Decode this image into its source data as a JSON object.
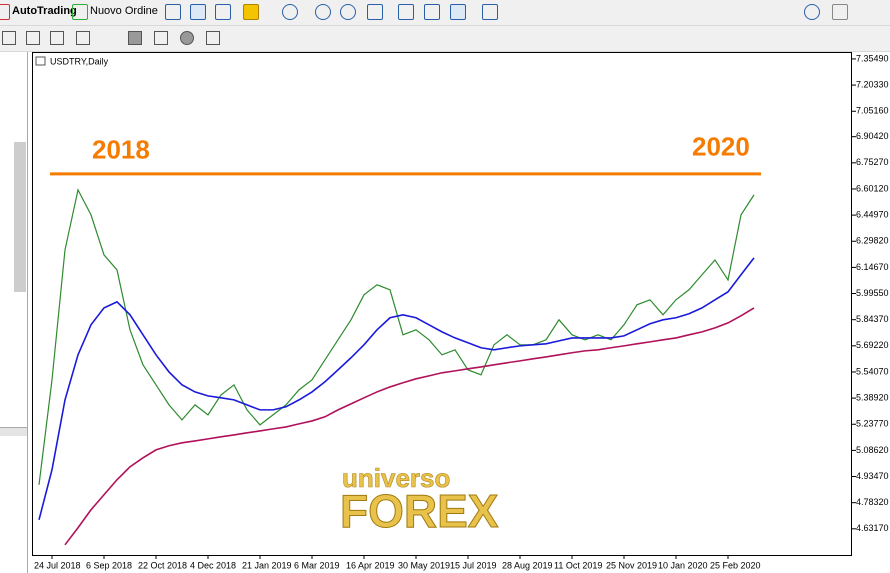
{
  "toolbar": {
    "buttons": [
      "AutoTrading",
      "Nuovo Ordine"
    ]
  },
  "watermark": [
    "universo",
    "FOREX"
  ],
  "chart_data": {
    "type": "line",
    "title": "USDTRY,Daily",
    "annotations": [
      {
        "text": "2018"
      },
      {
        "text": "2020"
      }
    ],
    "level": 6.689,
    "level_color": "#f57c00",
    "categories": [
      null,
      "24 Jul 2018",
      null,
      null,
      null,
      "6 Sep 2018",
      null,
      null,
      null,
      "22 Oct 2018",
      null,
      null,
      null,
      "4 Dec 2018",
      null,
      null,
      null,
      "21 Jan 2019",
      null,
      null,
      null,
      "6 Mar 2019",
      null,
      null,
      null,
      "16 Apr 2019",
      null,
      null,
      null,
      "30 May 2019",
      null,
      null,
      null,
      "15 Jul 2019",
      null,
      null,
      null,
      "28 Aug 2019",
      null,
      null,
      null,
      "11 Oct 2019",
      null,
      null,
      null,
      "25 Nov 2019",
      null,
      null,
      null,
      "10 Jan 2020",
      null,
      null,
      null,
      "25 Feb 2020",
      null,
      null
    ],
    "series": [
      {
        "color": "#2e8b2e",
        "values": [
          4.887,
          5.495,
          6.248,
          6.596,
          6.451,
          6.219,
          6.132,
          5.785,
          5.582,
          5.466,
          5.35,
          5.263,
          5.35,
          5.292,
          5.408,
          5.466,
          5.321,
          5.234,
          5.292,
          5.35,
          5.437,
          5.495,
          5.611,
          5.727,
          5.843,
          5.988,
          6.046,
          6.017,
          5.756,
          5.785,
          5.727,
          5.64,
          5.669,
          5.553,
          5.524,
          5.698,
          5.756,
          5.698,
          5.698,
          5.727,
          5.843,
          5.756,
          5.727,
          5.756,
          5.727,
          5.814,
          5.93,
          5.959,
          5.872,
          5.959,
          6.017,
          6.104,
          6.19,
          6.074,
          6.451,
          6.567
        ]
      },
      {
        "color": "#1a1adb",
        "values": [
          4.684,
          4.974,
          5.379,
          5.64,
          5.814,
          5.912,
          5.947,
          5.872,
          5.756,
          5.64,
          5.541,
          5.466,
          5.425,
          5.402,
          5.391,
          5.379,
          5.35,
          5.321,
          5.321,
          5.339,
          5.379,
          5.425,
          5.484,
          5.553,
          5.623,
          5.698,
          5.785,
          5.855,
          5.872,
          5.855,
          5.814,
          5.773,
          5.738,
          5.71,
          5.681,
          5.669,
          5.681,
          5.692,
          5.698,
          5.704,
          5.721,
          5.738,
          5.738,
          5.738,
          5.738,
          5.75,
          5.785,
          5.82,
          5.843,
          5.855,
          5.878,
          5.912,
          5.959,
          6.005,
          6.104,
          6.202
        ]
      },
      {
        "color": "#b0115a",
        "values": [
          null,
          null,
          4.539,
          4.638,
          4.742,
          4.829,
          4.916,
          4.991,
          5.043,
          5.089,
          5.113,
          5.13,
          5.141,
          5.153,
          5.165,
          5.176,
          5.188,
          5.199,
          5.211,
          5.222,
          5.24,
          5.257,
          5.281,
          5.321,
          5.356,
          5.391,
          5.425,
          5.454,
          5.478,
          5.501,
          5.518,
          5.536,
          5.547,
          5.559,
          5.57,
          5.582,
          5.594,
          5.605,
          5.617,
          5.628,
          5.64,
          5.652,
          5.663,
          5.669,
          5.681,
          5.692,
          5.704,
          5.715,
          5.727,
          5.738,
          5.756,
          5.773,
          5.796,
          5.825,
          5.866,
          5.912
        ]
      }
    ],
    "ylim": [
      4.48,
      7.395
    ],
    "yticks": [
      {
        "value": 7.3549,
        "label": "7.35490"
      },
      {
        "value": 7.2033,
        "label": "7.20330"
      },
      {
        "value": 7.0516,
        "label": "7.05160"
      },
      {
        "value": 6.9042,
        "label": "6.90420"
      },
      {
        "value": 6.7527,
        "label": "6.75270"
      },
      {
        "value": 6.6012,
        "label": "6.60120"
      },
      {
        "value": 6.4497,
        "label": "6.44970"
      },
      {
        "value": 6.2982,
        "label": "6.29820"
      },
      {
        "value": 6.1467,
        "label": "6.14670"
      },
      {
        "value": 5.9955,
        "label": "5.99550"
      },
      {
        "value": 5.8437,
        "label": "5.84370"
      },
      {
        "value": 5.6922,
        "label": "5.69220"
      },
      {
        "value": 5.5407,
        "label": "5.54070"
      },
      {
        "value": 5.3892,
        "label": "5.38920"
      },
      {
        "value": 5.2377,
        "label": "5.23770"
      },
      {
        "value": 5.0862,
        "label": "5.08620"
      },
      {
        "value": 4.9347,
        "label": "4.93470"
      },
      {
        "value": 4.7832,
        "label": "4.78320"
      },
      {
        "value": 4.6317,
        "label": "4.63170"
      }
    ]
  }
}
